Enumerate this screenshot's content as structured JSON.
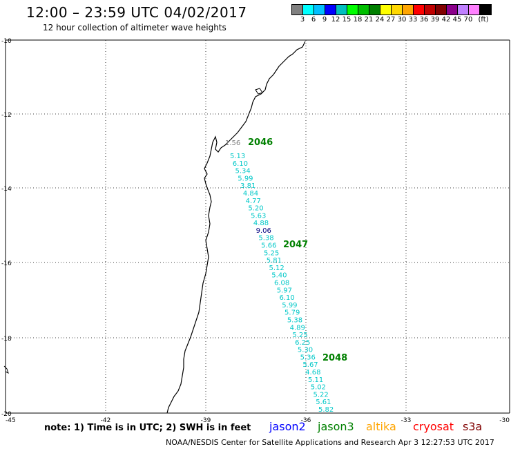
{
  "header": {
    "title": "12:00 – 23:59 UTC 04/02/2017",
    "subtitle": "12 hour collection of altimeter wave heights"
  },
  "colorbar": {
    "colors": [
      "#808080",
      "#00ffff",
      "#00bfff",
      "#0000ff",
      "#00bfbf",
      "#00ff00",
      "#00bf00",
      "#008000",
      "#ffff00",
      "#ffd700",
      "#ffa500",
      "#ff0000",
      "#bf0000",
      "#800000",
      "#8b008b",
      "#c080ff",
      "#ff80ff",
      "#000000"
    ],
    "labels": [
      "3",
      "6",
      "9",
      "12",
      "15",
      "18",
      "21",
      "24",
      "27",
      "30",
      "33",
      "36",
      "39",
      "42",
      "45",
      "70",
      "(ft)"
    ]
  },
  "axes": {
    "y_labels": [
      "-10",
      "-12",
      "-14",
      "-16",
      "-18",
      "-20"
    ],
    "x_labels": [
      "-45",
      "-42",
      "-39",
      "-36",
      "-33",
      "-30"
    ]
  },
  "tracks": [
    {
      "name": "2046",
      "color": "#008000"
    },
    {
      "name": "2047",
      "color": "#008000"
    },
    {
      "name": "2048",
      "color": "#008000"
    }
  ],
  "values": [
    "1.56",
    "5.13",
    "6.10",
    "5.34",
    "5.99",
    "3.81",
    "4.84",
    "4.77",
    "5.20",
    "5.63",
    "4.88",
    "9.06",
    "5.38",
    "5.66",
    "5.25",
    "5.81",
    "5.12",
    "5.40",
    "6.08",
    "5.97",
    "6.10",
    "5.99",
    "5.79",
    "5.38",
    "4.89",
    "5.25",
    "6.25",
    "5.30",
    "5.36",
    "5.67",
    "4.68",
    "5.11",
    "5.02",
    "5.22",
    "5.61",
    "5.82"
  ],
  "value_colors": {
    "1.56": "#808080",
    "9.06": "#00007f",
    "default": "#00c8c8"
  },
  "footer": {
    "note": "note:  1) Time is in UTC;  2) SWH is in feet",
    "legend": [
      {
        "label": "jason2",
        "color": "#0000ff"
      },
      {
        "label": "jason3",
        "color": "#008000"
      },
      {
        "label": "altika",
        "color": "#ffa500"
      },
      {
        "label": "cryosat",
        "color": "#ff0000"
      },
      {
        "label": "s3a",
        "color": "#800000"
      }
    ],
    "credit": "NOAA/NESDIS Center for Satellite Applications and Research   Apr  3 12:27:53 UTC 2017"
  }
}
